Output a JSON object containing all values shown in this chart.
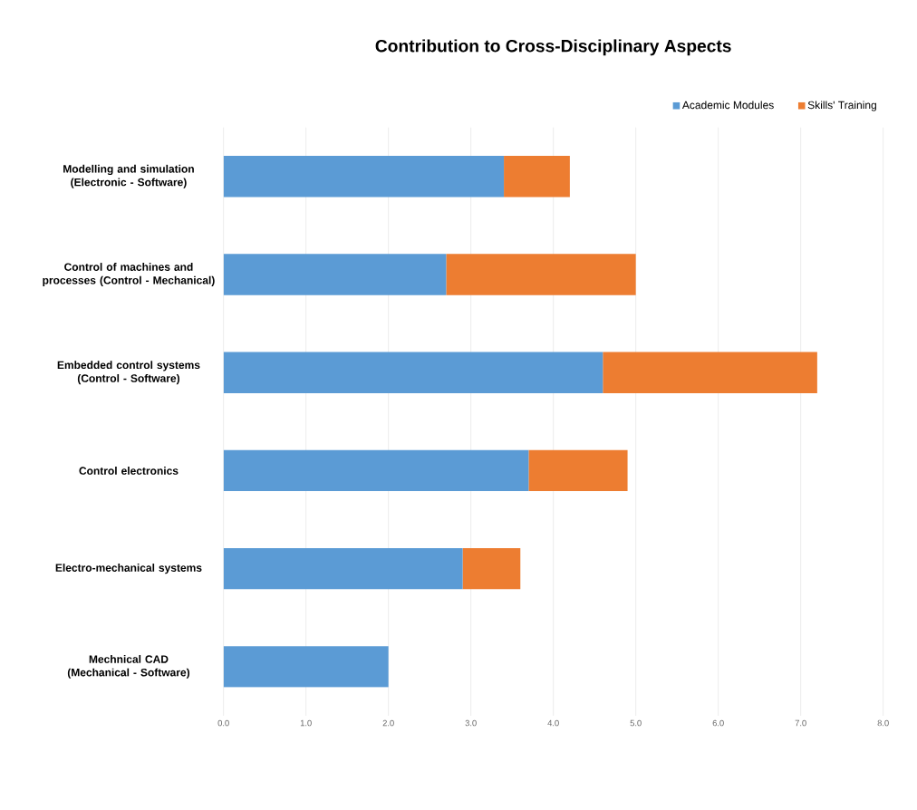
{
  "chart_data": {
    "type": "bar",
    "orientation": "horizontal",
    "stacked": true,
    "title": "Contribution to Cross-Disciplinary Aspects",
    "categories": [
      "Modelling and simulation (Electronic - Software)",
      "Control of machines and processes (Control - Mechanical)",
      "Embedded control systems (Control - Software)",
      "Control electronics",
      "Electro-mechanical systems",
      "Mechnical CAD  (Mechanical - Software)"
    ],
    "series": [
      {
        "name": "Academic Modules",
        "color": "#5b9bd5",
        "values": [
          3.4,
          2.7,
          4.6,
          3.7,
          2.9,
          2.0
        ]
      },
      {
        "name": "Skills' Training",
        "color": "#ed7d31",
        "values": [
          0.8,
          2.3,
          2.6,
          1.2,
          0.7,
          0
        ]
      }
    ],
    "xlim": [
      0,
      8
    ],
    "xticks": [
      {
        "value": 0,
        "label": "0.0"
      },
      {
        "value": 1,
        "label": "1.0"
      },
      {
        "value": 2,
        "label": "2.0"
      },
      {
        "value": 3,
        "label": "3.0"
      },
      {
        "value": 4,
        "label": "4.0"
      },
      {
        "value": 5,
        "label": "5.0"
      },
      {
        "value": 6,
        "label": "6.0"
      },
      {
        "value": 7,
        "label": "7.0"
      },
      {
        "value": 8,
        "label": "8.0"
      }
    ],
    "grid": "x",
    "legend": "top right"
  }
}
